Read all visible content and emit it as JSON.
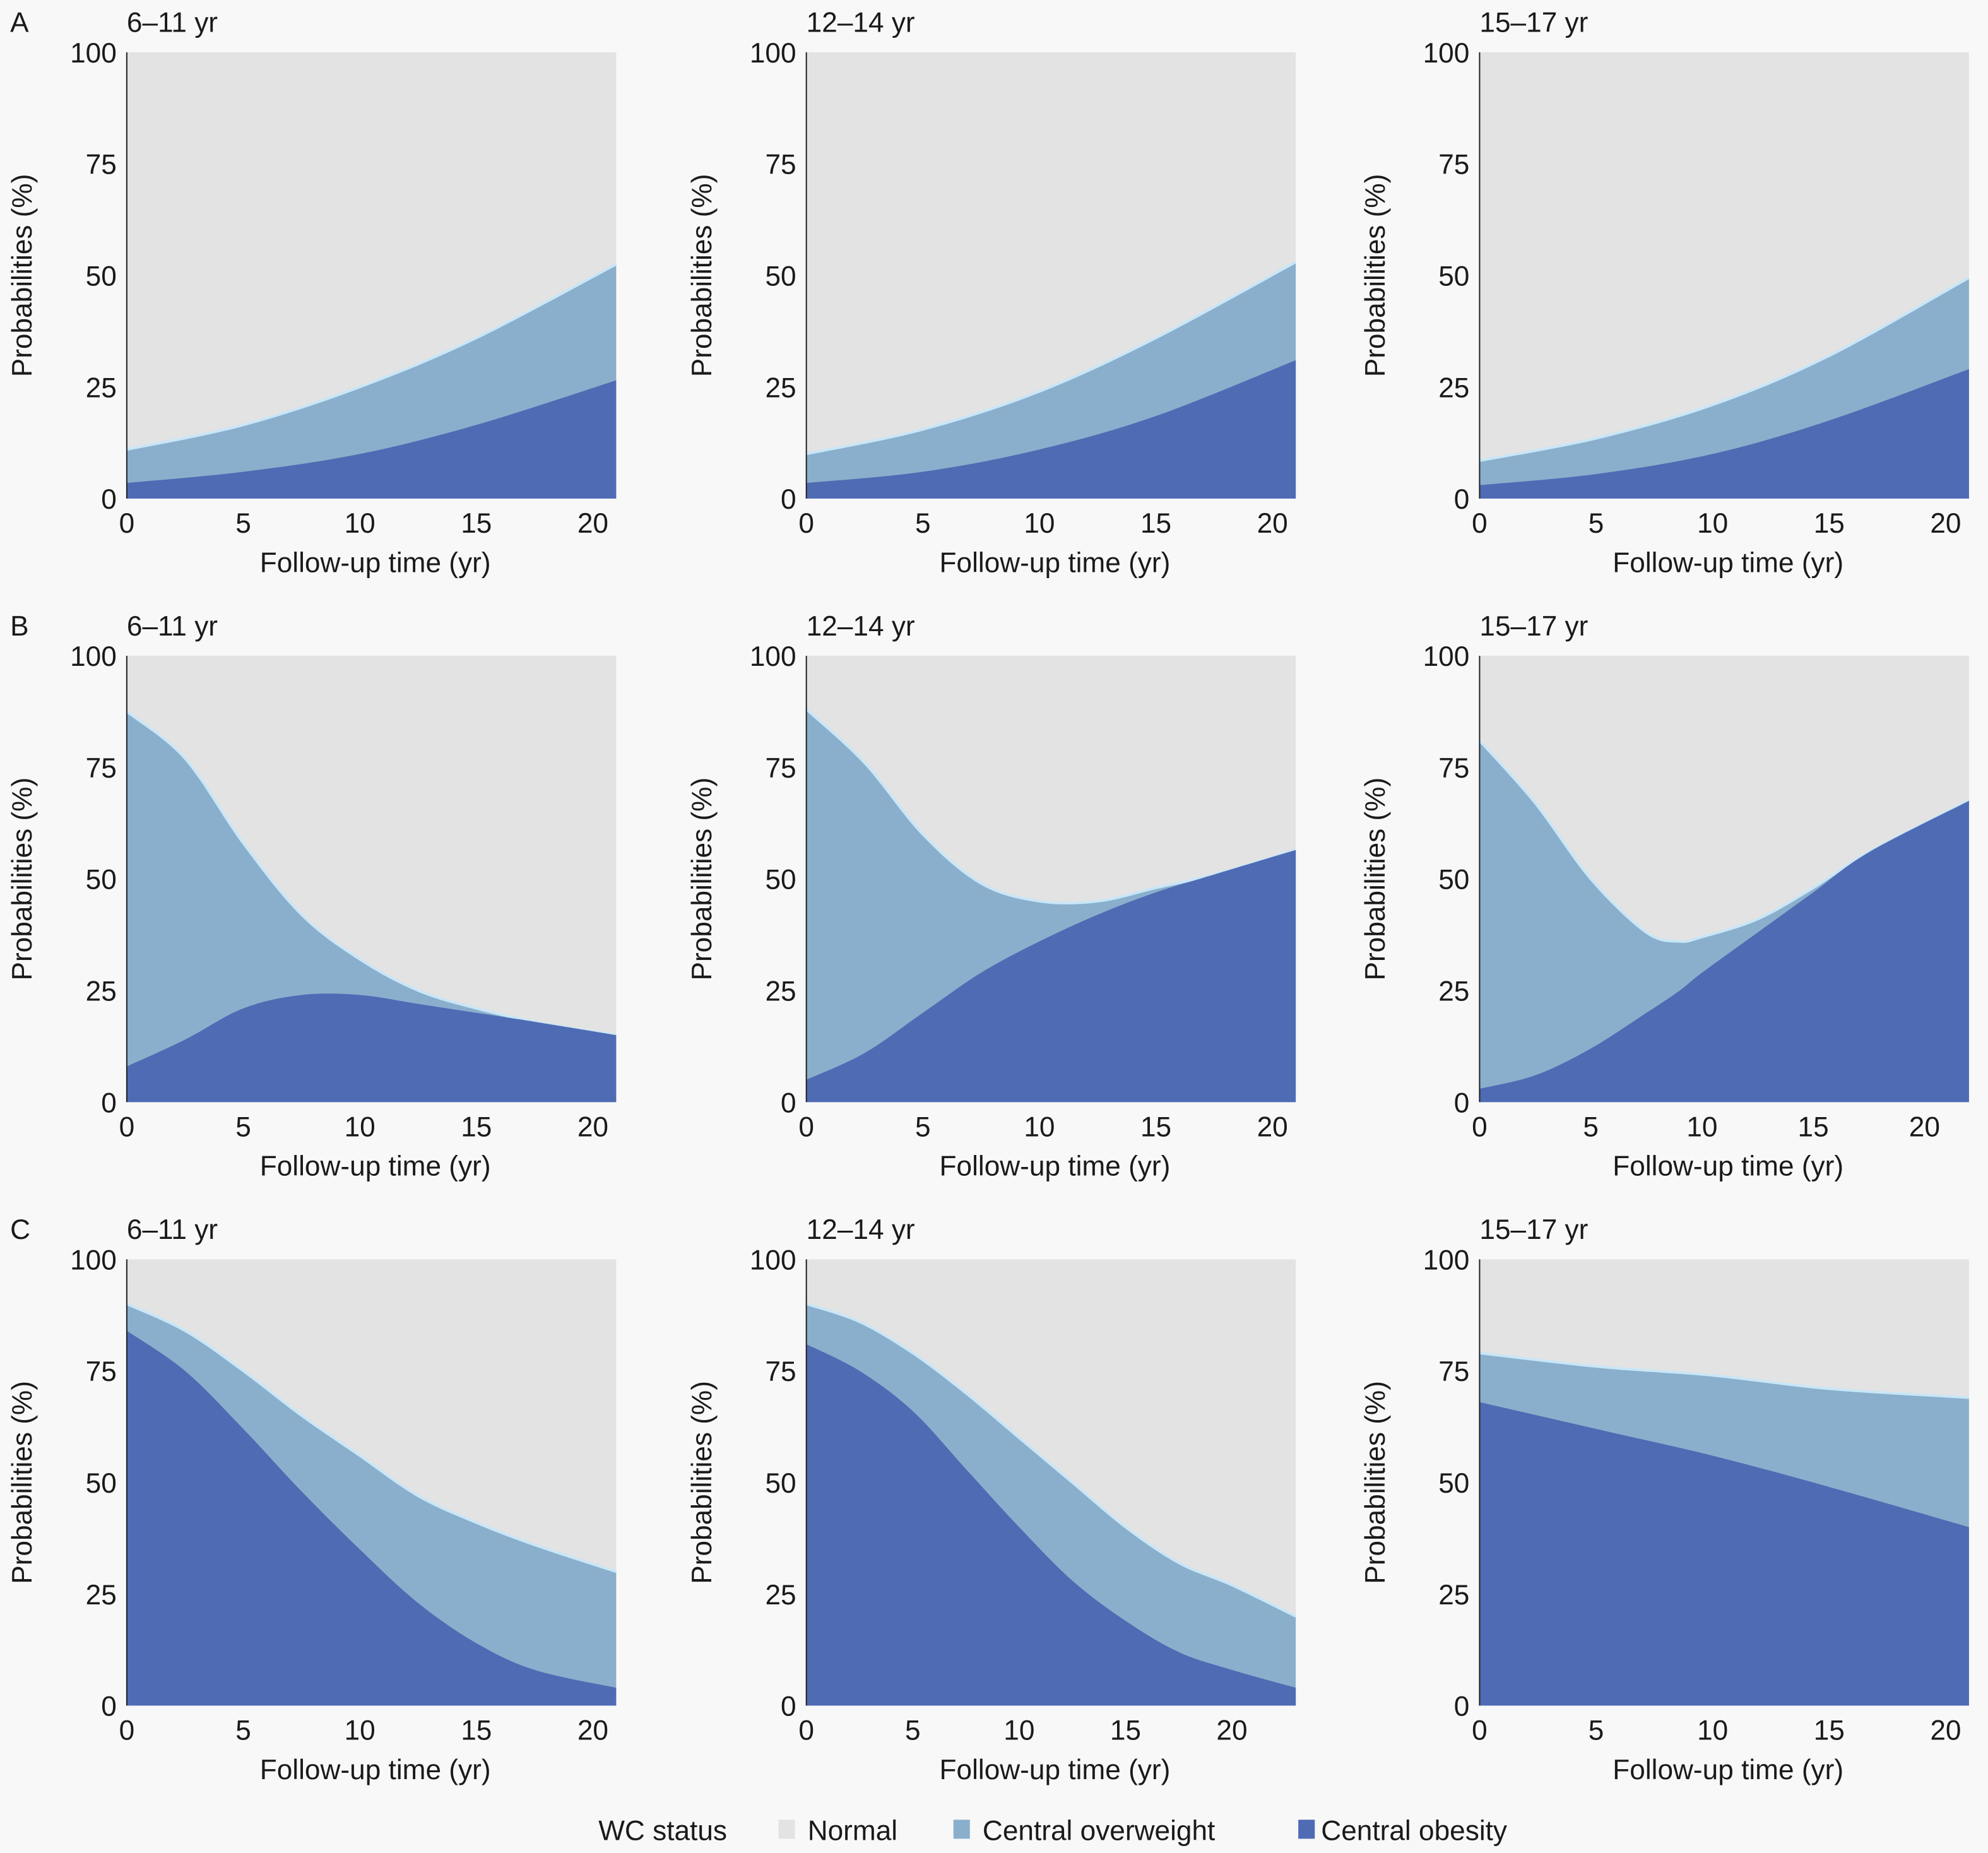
{
  "chart_data": {
    "type": "area",
    "stacked": true,
    "ylabel": "Probabilities (%)",
    "xlabel": "Follow-up time (yr)",
    "ylim": [
      0,
      100
    ],
    "y_ticks": [
      0,
      25,
      50,
      75,
      100
    ],
    "x_ticks": [
      0,
      5,
      10,
      15,
      20
    ],
    "legend": {
      "title": "WC status",
      "placement": "bottom",
      "entries": [
        {
          "name": "Normal",
          "color": "#e3e3e3"
        },
        {
          "name": "Central overweight",
          "color": "#8aafcc"
        },
        {
          "name": "Central obesity",
          "color": "#4e6bb4"
        }
      ]
    },
    "boundary_color": "#c8e6f7",
    "rows": [
      {
        "label": "A",
        "panels": [
          {
            "title": "6–11 yr",
            "xmax": 21,
            "x": [
              0,
              5,
              10,
              15,
              21
            ],
            "central_obesity": [
              3.5,
              6,
              10,
              16.5,
              26.5
            ],
            "obesity_plus_overweight": [
              11,
              16.5,
              25,
              36,
              52.5
            ]
          },
          {
            "title": "12–14 yr",
            "xmax": 21,
            "x": [
              0,
              5,
              10,
              15,
              21
            ],
            "central_obesity": [
              3.5,
              6,
              11,
              18.5,
              31
            ],
            "obesity_plus_overweight": [
              10,
              15.5,
              24,
              36,
              53
            ]
          },
          {
            "title": "15–17 yr",
            "xmax": 21,
            "x": [
              0,
              5,
              10,
              15,
              21
            ],
            "central_obesity": [
              3,
              5.5,
              10,
              17.5,
              29
            ],
            "obesity_plus_overweight": [
              8.5,
              13.5,
              21,
              32,
              49.5
            ]
          }
        ]
      },
      {
        "label": "B",
        "panels": [
          {
            "title": "6–11 yr",
            "xmax": 21,
            "x": [
              0,
              2.5,
              5,
              7.5,
              10,
              12.5,
              15,
              17.5,
              21
            ],
            "central_obesity": [
              8,
              14,
              21,
              24,
              24,
              22,
              20,
              18,
              15
            ],
            "obesity_plus_overweight": [
              87.5,
              77,
              58,
              42,
              32,
              25,
              21,
              18,
              15
            ]
          },
          {
            "title": "12–14 yr",
            "xmax": 21,
            "x": [
              0,
              2.5,
              5,
              7.5,
              10,
              12.5,
              15,
              17.5,
              21
            ],
            "central_obesity": [
              5,
              11,
              20,
              29,
              36,
              42,
              47,
              51,
              56.5
            ],
            "obesity_plus_overweight": [
              88,
              76,
              60,
              49,
              45,
              45,
              48,
              51,
              56.5
            ]
          },
          {
            "title": "15–17 yr",
            "xmax": 22,
            "x": [
              0,
              2.5,
              5,
              7.5,
              9,
              10,
              12.5,
              15,
              17.5,
              22
            ],
            "central_obesity": [
              3,
              6,
              12,
              20,
              25,
              29,
              38,
              47,
              56,
              67.5
            ],
            "obesity_plus_overweight": [
              81,
              67,
              50,
              38,
              36,
              37,
              41,
              48,
              56,
              67.5
            ]
          }
        ]
      },
      {
        "label": "C",
        "panels": [
          {
            "title": "6–11 yr",
            "xmax": 21,
            "x": [
              0,
              2.5,
              5,
              7.5,
              10,
              12.5,
              15,
              17.5,
              21
            ],
            "central_obesity": [
              84,
              75,
              62,
              48,
              35,
              23,
              14,
              8,
              4
            ],
            "obesity_plus_overweight": [
              90,
              84,
              75,
              65,
              56,
              47,
              41,
              36,
              30
            ]
          },
          {
            "title": "12–14 yr",
            "xmax": 23,
            "x": [
              0,
              2.5,
              5,
              7.5,
              10,
              12.5,
              15,
              17.5,
              20,
              23
            ],
            "central_obesity": [
              81,
              75,
              66,
              53,
              40,
              28,
              19,
              12,
              8,
              4
            ],
            "obesity_plus_overweight": [
              90,
              86,
              79,
              70,
              60,
              50,
              40,
              32,
              27,
              20
            ]
          },
          {
            "title": "15–17 yr",
            "xmax": 21,
            "x": [
              0,
              5,
              10,
              15,
              21
            ],
            "central_obesity": [
              68,
              62,
              56,
              49,
              40
            ],
            "obesity_plus_overweight": [
              79,
              76,
              74,
              71,
              69
            ]
          }
        ]
      }
    ]
  }
}
